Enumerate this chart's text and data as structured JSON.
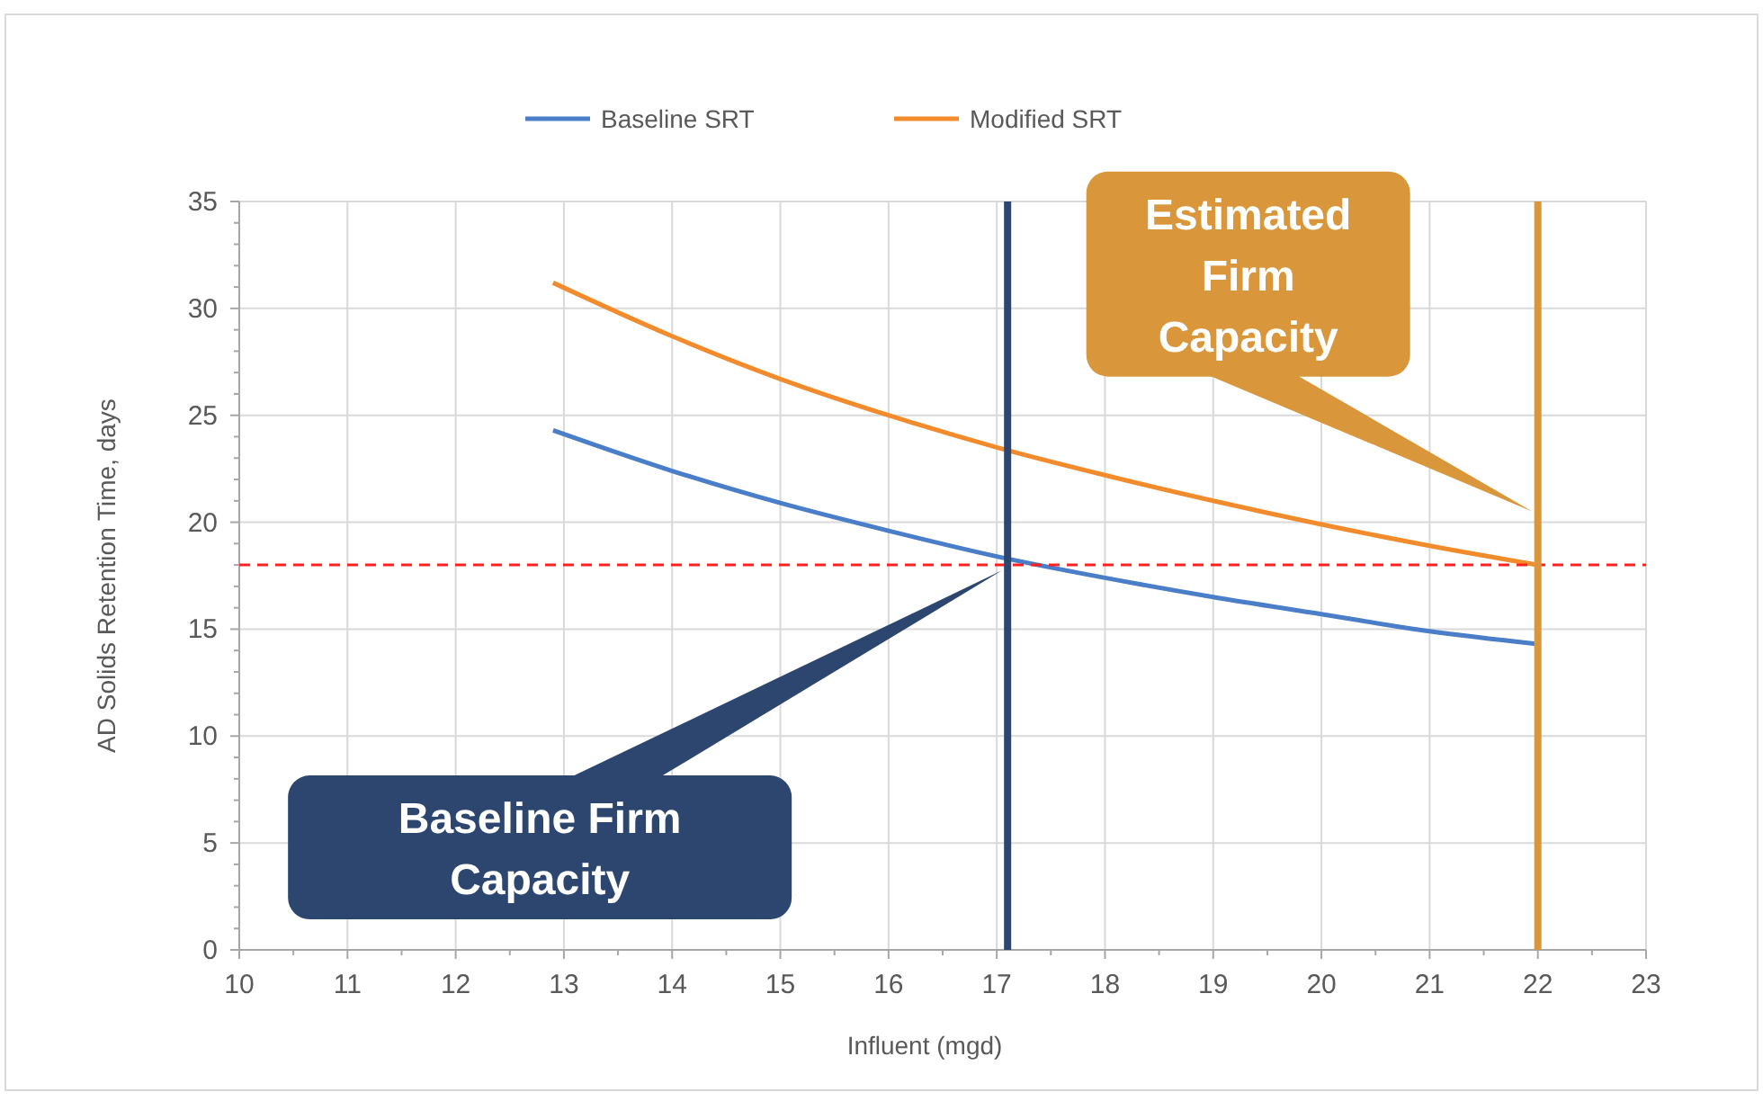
{
  "chart_data": {
    "type": "line",
    "xlabel": "Influent (mgd)",
    "ylabel": "AD Solids Retention Time, days",
    "x": [
      12.9,
      14,
      15,
      16,
      17,
      18,
      19,
      20,
      21,
      22
    ],
    "series": [
      {
        "name": "Baseline SRT",
        "color": "#4a7ec8",
        "values": [
          24.3,
          22.4,
          20.9,
          19.6,
          18.4,
          17.4,
          16.5,
          15.7,
          14.9,
          14.3
        ]
      },
      {
        "name": "Modified SRT",
        "color": "#f28b2c",
        "values": [
          31.2,
          28.7,
          26.7,
          25.0,
          23.5,
          22.2,
          21.0,
          19.9,
          18.9,
          18.0
        ]
      }
    ],
    "xlim": [
      10,
      23
    ],
    "xticks": [
      10,
      11,
      12,
      13,
      14,
      15,
      16,
      17,
      18,
      19,
      20,
      21,
      22,
      23
    ],
    "ylim": [
      0,
      35
    ],
    "yticks": [
      0,
      5,
      10,
      15,
      20,
      25,
      30,
      35
    ],
    "grid": true,
    "legend": "top",
    "marker": "none",
    "line_style": "solid",
    "ref_lines": [
      {
        "axis": "y",
        "value": 18,
        "color": "#ff2020",
        "line_style": "dashed"
      },
      {
        "axis": "x",
        "value": 17.1,
        "color": "#2c4670",
        "line_style": "solid"
      },
      {
        "axis": "x",
        "value": 22,
        "color": "#d9963a",
        "line_style": "solid"
      }
    ],
    "annotations": [
      {
        "text": "Baseline Firm Capacity",
        "x": 17.1,
        "y": 18
      },
      {
        "text": "Estimated Firm Capacity",
        "x": 22,
        "y": 20.5
      }
    ]
  }
}
